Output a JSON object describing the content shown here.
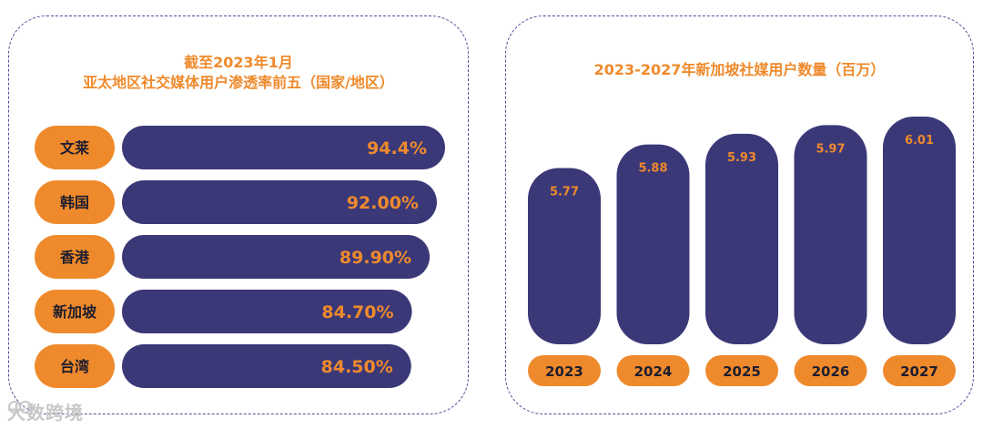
{
  "colors": {
    "accent": "#ef8a2c",
    "bar": "#3b3878",
    "border": "#4b4f9a"
  },
  "chart_data": [
    {
      "type": "bar",
      "orientation": "horizontal",
      "title": [
        "截至2023年1月",
        "亚太地区社交媒体用户渗透率前五（国家/地区）"
      ],
      "categories": [
        "文莱",
        "韩国",
        "香港",
        "新加坡",
        "台湾"
      ],
      "values": [
        94.4,
        92.0,
        89.9,
        84.7,
        84.5
      ],
      "value_labels": [
        "94.4%",
        "92.00%",
        "89.90%",
        "84.70%",
        "84.50%"
      ],
      "unit": "%",
      "xlim": [
        0,
        100
      ],
      "grid": false
    },
    {
      "type": "bar",
      "orientation": "vertical",
      "title": "2023-2027年新加坡社媒用户数量（百万）",
      "categories": [
        "2023",
        "2024",
        "2025",
        "2026",
        "2027"
      ],
      "values": [
        5.77,
        5.88,
        5.93,
        5.97,
        6.01
      ],
      "value_labels": [
        "5.77",
        "5.88",
        "5.93",
        "5.97",
        "6.01"
      ],
      "grid": false
    }
  ],
  "watermark": {
    "text": "大数跨境",
    "icon": "brand-logo-icon"
  }
}
